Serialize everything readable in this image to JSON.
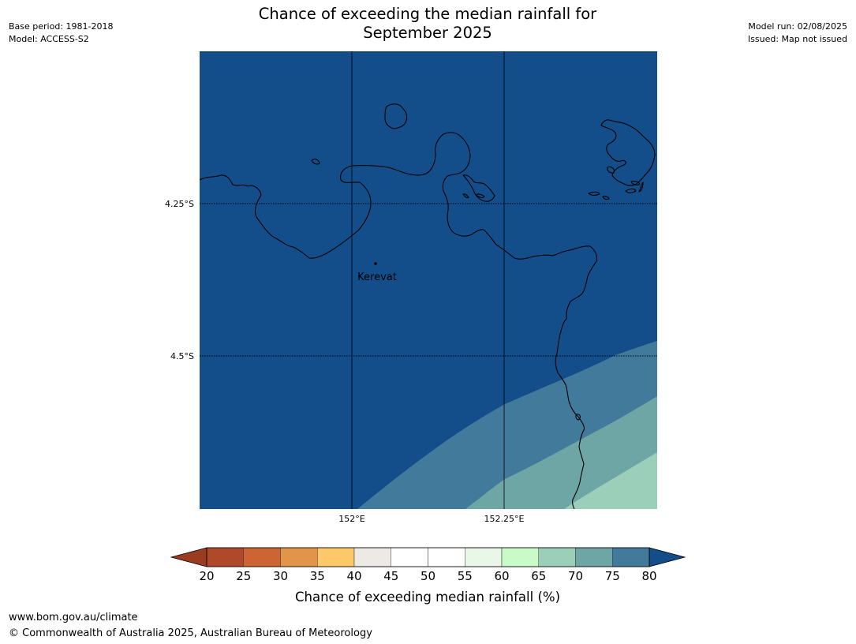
{
  "title_line1": "Chance of exceeding the median rainfall for",
  "title_line2": "September 2025",
  "base_period": "Base period: 1981-2018",
  "model": "Model: ACCESS-S2",
  "model_run": "Model run: 02/08/2025",
  "issued": "Issued: Map not issued",
  "place": {
    "name": "Kerevat"
  },
  "lat_labels": [
    "4.25°S",
    "4.5°S"
  ],
  "lon_labels": [
    "152°E",
    "152.25°E"
  ],
  "colorbar": {
    "title": "Chance of exceeding median rainfall (%)",
    "ticks": [
      "20",
      "25",
      "30",
      "35",
      "40",
      "45",
      "50",
      "55",
      "60",
      "65",
      "70",
      "75",
      "80"
    ],
    "under_color": "#9a3b22",
    "over_color": "#134e8a",
    "colors": [
      "#b0492a",
      "#cc6434",
      "#e29548",
      "#fdc968",
      "#ede9e4",
      "#ffffff",
      "#ffffff",
      "#e8f7e8",
      "#c9fbc9",
      "#9ccfb9",
      "#6ea5a5",
      "#427a9b"
    ]
  },
  "footer_url": "www.bom.gov.au/climate",
  "footer_copyright": "© Commonwealth of Australia 2025, Australian Bureau of Meteorology"
}
